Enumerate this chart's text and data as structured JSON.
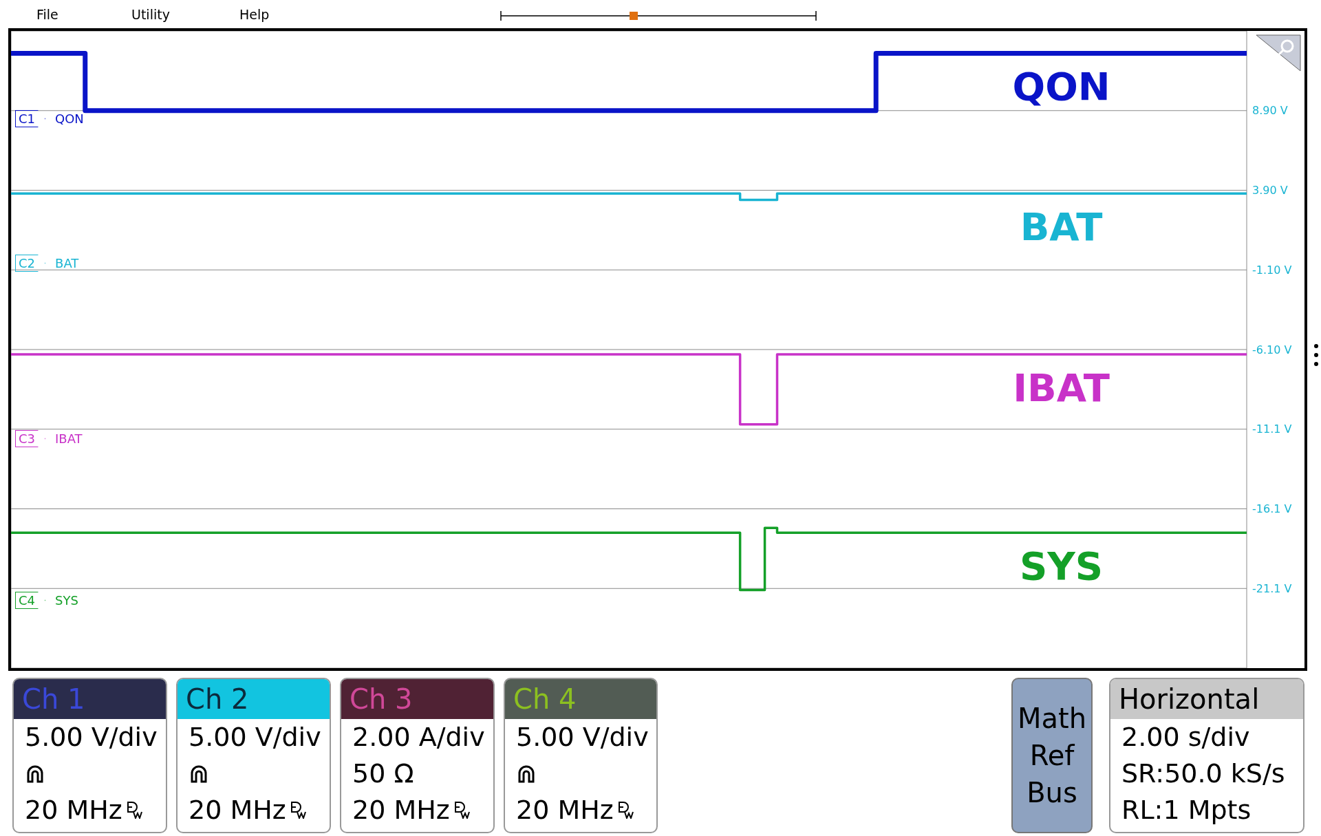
{
  "chart_data": {
    "type": "step",
    "categories": [
      null,
      null,
      null,
      null,
      null,
      null,
      null,
      null,
      null,
      null,
      null,
      null,
      null,
      null,
      null,
      null,
      null,
      null,
      null,
      null,
      null,
      null,
      null,
      null,
      null,
      null,
      null,
      null,
      null,
      null,
      null,
      null,
      null,
      null,
      null,
      null,
      null,
      null,
      null,
      null,
      null,
      null,
      null,
      null,
      null,
      null,
      null,
      null,
      null,
      null,
      null,
      null,
      null,
      null,
      null,
      null,
      null,
      null,
      null,
      null,
      null,
      null,
      null,
      null,
      null,
      null,
      null,
      null,
      null,
      null,
      null,
      null,
      null,
      null,
      null,
      null,
      null,
      null,
      null,
      null,
      null,
      null,
      null,
      null,
      null,
      null,
      null,
      null,
      null,
      null,
      null,
      null,
      null,
      null,
      null,
      null,
      null,
      null,
      null,
      null,
      null
    ],
    "series": [
      {
        "name": "QON",
        "color": "#0a14c8",
        "values": [
          12.5,
          12.5,
          12.5,
          12.5,
          12.5,
          12.5,
          8.9,
          8.9,
          8.9,
          8.9,
          8.9,
          8.9,
          8.9,
          8.9,
          8.9,
          8.9,
          8.9,
          8.9,
          8.9,
          8.9,
          8.9,
          8.9,
          8.9,
          8.9,
          8.9,
          8.9,
          8.9,
          8.9,
          8.9,
          8.9,
          8.9,
          8.9,
          8.9,
          8.9,
          8.9,
          8.9,
          8.9,
          8.9,
          8.9,
          8.9,
          8.9,
          8.9,
          8.9,
          8.9,
          8.9,
          8.9,
          8.9,
          8.9,
          8.9,
          8.9,
          8.9,
          8.9,
          8.9,
          8.9,
          8.9,
          8.9,
          8.9,
          8.9,
          8.9,
          8.9,
          8.9,
          8.9,
          8.9,
          8.9,
          8.9,
          8.9,
          8.9,
          8.9,
          8.9,
          8.9,
          12.5,
          12.5,
          12.5,
          12.5,
          12.5,
          12.5,
          12.5,
          12.5,
          12.5,
          12.5,
          12.5,
          12.5,
          12.5,
          12.5,
          12.5,
          12.5,
          12.5,
          12.5,
          12.5,
          12.5,
          12.5,
          12.5,
          12.5,
          12.5,
          12.5,
          12.5,
          12.5,
          12.5,
          12.5,
          12.5,
          12.5
        ]
      },
      {
        "name": "BAT",
        "color": "#19b4d2",
        "values": [
          3.7,
          3.7,
          3.7,
          3.7,
          3.7,
          3.7,
          3.7,
          3.7,
          3.7,
          3.7,
          3.7,
          3.7,
          3.7,
          3.7,
          3.7,
          3.7,
          3.7,
          3.7,
          3.7,
          3.7,
          3.7,
          3.7,
          3.7,
          3.7,
          3.7,
          3.7,
          3.7,
          3.7,
          3.7,
          3.7,
          3.7,
          3.7,
          3.7,
          3.7,
          3.7,
          3.7,
          3.7,
          3.7,
          3.7,
          3.7,
          3.7,
          3.7,
          3.7,
          3.7,
          3.7,
          3.7,
          3.7,
          3.7,
          3.7,
          3.7,
          3.7,
          3.7,
          3.7,
          3.7,
          3.7,
          3.7,
          3.7,
          3.7,
          3.7,
          3.3,
          3.3,
          3.3,
          3.7,
          3.7,
          3.7,
          3.7,
          3.7,
          3.7,
          3.7,
          3.7,
          3.7,
          3.7,
          3.7,
          3.7,
          3.7,
          3.7,
          3.7,
          3.7,
          3.7,
          3.7,
          3.7,
          3.7,
          3.7,
          3.7,
          3.7,
          3.7,
          3.7,
          3.7,
          3.7,
          3.7,
          3.7,
          3.7,
          3.7,
          3.7,
          3.7,
          3.7,
          3.7,
          3.7,
          3.7,
          3.7,
          3.7
        ]
      },
      {
        "name": "IBAT",
        "color": "#c832c8",
        "values": [
          -6.4,
          -6.4,
          -6.4,
          -6.4,
          -6.4,
          -6.4,
          -6.4,
          -6.4,
          -6.4,
          -6.4,
          -6.4,
          -6.4,
          -6.4,
          -6.4,
          -6.4,
          -6.4,
          -6.4,
          -6.4,
          -6.4,
          -6.4,
          -6.4,
          -6.4,
          -6.4,
          -6.4,
          -6.4,
          -6.4,
          -6.4,
          -6.4,
          -6.4,
          -6.4,
          -6.4,
          -6.4,
          -6.4,
          -6.4,
          -6.4,
          -6.4,
          -6.4,
          -6.4,
          -6.4,
          -6.4,
          -6.4,
          -6.4,
          -6.4,
          -6.4,
          -6.4,
          -6.4,
          -6.4,
          -6.4,
          -6.4,
          -6.4,
          -6.4,
          -6.4,
          -6.4,
          -6.4,
          -6.4,
          -6.4,
          -6.4,
          -6.4,
          -6.4,
          -10.8,
          -10.8,
          -10.8,
          -6.4,
          -6.4,
          -6.4,
          -6.4,
          -6.4,
          -6.4,
          -6.4,
          -6.4,
          -6.4,
          -6.4,
          -6.4,
          -6.4,
          -6.4,
          -6.4,
          -6.4,
          -6.4,
          -6.4,
          -6.4,
          -6.4,
          -6.4,
          -6.4,
          -6.4,
          -6.4,
          -6.4,
          -6.4,
          -6.4,
          -6.4,
          -6.4,
          -6.4,
          -6.4,
          -6.4,
          -6.4,
          -6.4,
          -6.4,
          -6.4,
          -6.4,
          -6.4,
          -6.4,
          -6.4
        ]
      },
      {
        "name": "SYS",
        "color": "#14a028",
        "values": [
          -17.6,
          -17.6,
          -17.6,
          -17.6,
          -17.6,
          -17.6,
          -17.6,
          -17.6,
          -17.6,
          -17.6,
          -17.6,
          -17.6,
          -17.6,
          -17.6,
          -17.6,
          -17.6,
          -17.6,
          -17.6,
          -17.6,
          -17.6,
          -17.6,
          -17.6,
          -17.6,
          -17.6,
          -17.6,
          -17.6,
          -17.6,
          -17.6,
          -17.6,
          -17.6,
          -17.6,
          -17.6,
          -17.6,
          -17.6,
          -17.6,
          -17.6,
          -17.6,
          -17.6,
          -17.6,
          -17.6,
          -17.6,
          -17.6,
          -17.6,
          -17.6,
          -17.6,
          -17.6,
          -17.6,
          -17.6,
          -17.6,
          -17.6,
          -17.6,
          -17.6,
          -17.6,
          -17.6,
          -17.6,
          -17.6,
          -17.6,
          -17.6,
          -17.6,
          -21.2,
          -21.2,
          -17.3,
          -17.6,
          -17.6,
          -17.6,
          -17.6,
          -17.6,
          -17.6,
          -17.6,
          -17.6,
          -17.6,
          -17.6,
          -17.6,
          -17.6,
          -17.6,
          -17.6,
          -17.6,
          -17.6,
          -17.6,
          -17.6,
          -17.6,
          -17.6,
          -17.6,
          -17.6,
          -17.6,
          -17.6,
          -17.6,
          -17.6,
          -17.6,
          -17.6,
          -17.6,
          -17.6,
          -17.6,
          -17.6,
          -17.6,
          -17.6,
          -17.6,
          -17.6,
          -17.6,
          -17.6,
          -17.6
        ]
      }
    ],
    "ylim": [
      -26.1,
      13.9
    ],
    "yticks": [
      {
        "value": 8.9,
        "label": "8.90 V"
      },
      {
        "value": 3.9,
        "label": "3.90 V"
      },
      {
        "value": -1.1,
        "label": "-1.10 V"
      },
      {
        "value": -6.1,
        "label": "-6.10 V"
      },
      {
        "value": -11.1,
        "label": "-11.1 V"
      },
      {
        "value": -16.1,
        "label": "-16.1 V"
      },
      {
        "value": -21.1,
        "label": "-21.1 V"
      }
    ],
    "grid": true,
    "line_style": "solid",
    "marker": "none",
    "annotations": [
      "File",
      "Utility",
      "Help",
      "C1",
      "QON",
      "C2",
      "BAT",
      "C3",
      "IBAT",
      "C4",
      "SYS",
      "Ch 1",
      "5.00 V/div",
      "20 MHz",
      "Ch 2",
      "5.00 V/div",
      "20 MHz",
      "Ch 3",
      "2.00 A/div",
      "50 Ω",
      "20 MHz",
      "Ch 4",
      "5.00 V/div",
      "20 MHz",
      "Math",
      "Ref",
      "Bus",
      "Horizontal",
      "2.00 s/div",
      "SR:50.0 kS/s",
      "RL:1 Mpts"
    ]
  }
}
